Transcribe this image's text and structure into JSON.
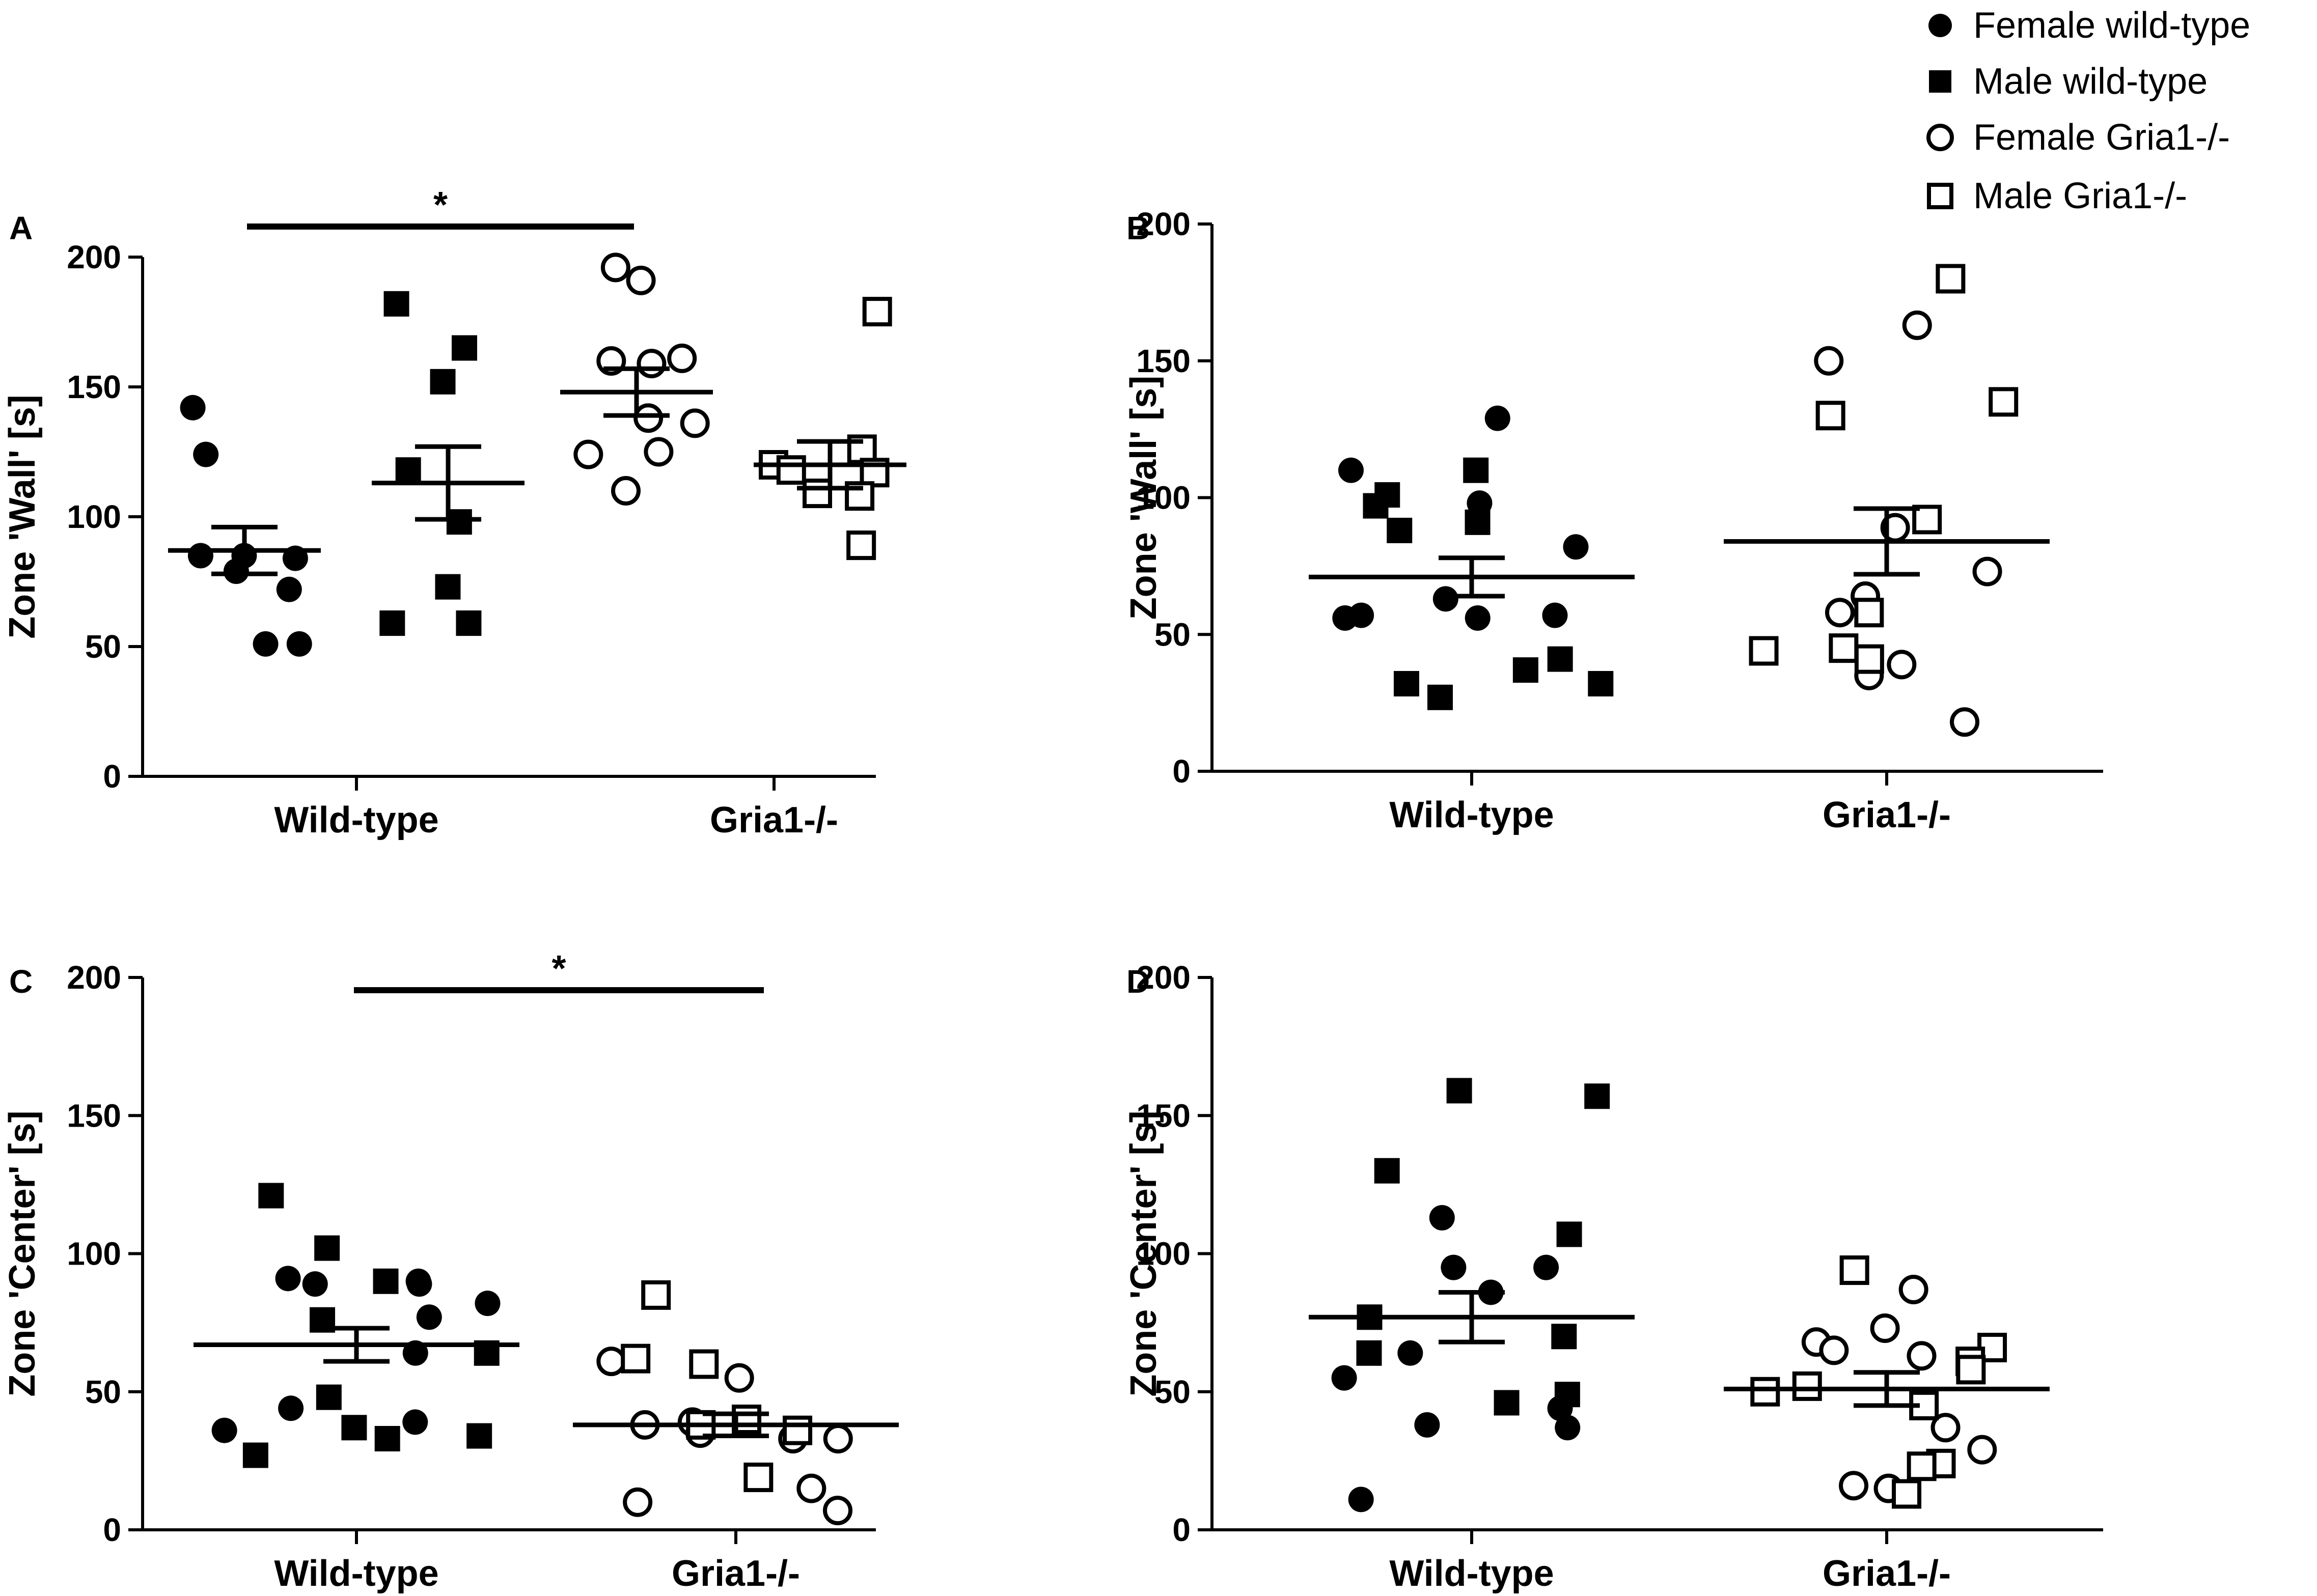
{
  "legend": {
    "placement": "top-right",
    "entries": [
      {
        "name": "female-wt",
        "label": "Female wild-type",
        "marker": "circle",
        "filled": true
      },
      {
        "name": "male-wt",
        "label": "Male wild-type",
        "marker": "square",
        "filled": true
      },
      {
        "name": "female-ko",
        "label": "Female Gria1-/-",
        "marker": "circle",
        "filled": false
      },
      {
        "name": "male-ko",
        "label": "Male Gria1-/-",
        "marker": "square",
        "filled": false
      }
    ]
  },
  "chart_data": [
    {
      "id": "A",
      "letter": "A",
      "type": "scatter",
      "ylabel": "Zone 'Wall' [s]",
      "ylim": [
        0,
        200
      ],
      "yticks": [
        0,
        50,
        100,
        150,
        200
      ],
      "categories": [
        "Wild-type",
        "Gria1-/-"
      ],
      "groups": [
        {
          "category": "Wild-type",
          "sex": "female",
          "marker": "circle",
          "filled": true,
          "values": [
            142,
            124,
            85,
            85,
            84,
            79,
            72,
            51,
            51
          ],
          "mean": 87,
          "sem": 9
        },
        {
          "category": "Wild-type",
          "sex": "male",
          "marker": "square",
          "filled": true,
          "values": [
            182,
            165,
            152,
            118,
            98,
            73,
            59,
            59
          ],
          "mean": 113,
          "sem": 14
        },
        {
          "category": "Gria1-/-",
          "sex": "female",
          "marker": "circle",
          "filled": false,
          "values": [
            196,
            191,
            161,
            160,
            159,
            138,
            136,
            125,
            124,
            110
          ],
          "mean": 148,
          "sem": 9
        },
        {
          "category": "Gria1-/-",
          "sex": "male",
          "marker": "square",
          "filled": false,
          "values": [
            179,
            126,
            120,
            118,
            117,
            109,
            108,
            89
          ],
          "mean": 120,
          "sem": 9
        }
      ],
      "significance": [
        {
          "label": "*",
          "from": "Wild-type female",
          "to": "Gria1-/- female"
        }
      ]
    },
    {
      "id": "B",
      "letter": "B",
      "type": "scatter",
      "ylabel": "Zone 'Wall' [s]",
      "ylim": [
        0,
        200
      ],
      "yticks": [
        0,
        50,
        100,
        150,
        200
      ],
      "categories": [
        "Wild-type",
        "Gria1-/-"
      ],
      "groups": [
        {
          "category": "Wild-type",
          "sex": "female",
          "marker": "circle",
          "filled": true,
          "values": [
            129,
            110,
            98,
            82,
            63,
            57,
            57,
            56,
            56
          ],
          "mean": 71,
          "sem": 7
        },
        {
          "category": "Wild-type",
          "sex": "male",
          "marker": "square",
          "filled": true,
          "values": [
            110,
            101,
            97,
            91,
            88,
            41,
            37,
            32,
            32,
            27
          ],
          "mean": 71,
          "sem": 7
        },
        {
          "category": "Gria1-/-",
          "sex": "female",
          "marker": "circle",
          "filled": false,
          "values": [
            163,
            150,
            89,
            73,
            64,
            58,
            39,
            35,
            18
          ],
          "mean": 84,
          "sem": 12
        },
        {
          "category": "Gria1-/-",
          "sex": "male",
          "marker": "square",
          "filled": false,
          "values": [
            180,
            135,
            130,
            92,
            58,
            45,
            44,
            41
          ],
          "mean": 84,
          "sem": 12
        }
      ],
      "significance": []
    },
    {
      "id": "C",
      "letter": "C",
      "type": "scatter",
      "ylabel": "Zone 'Center' [s]",
      "ylim": [
        0,
        200
      ],
      "yticks": [
        0,
        50,
        100,
        150,
        200
      ],
      "categories": [
        "Wild-type",
        "Gria1-/-"
      ],
      "groups": [
        {
          "category": "Wild-type",
          "sex": "female",
          "marker": "circle",
          "filled": true,
          "values": [
            91,
            90,
            89,
            89,
            82,
            77,
            64,
            44,
            39,
            36
          ],
          "mean": 67,
          "sem": 6
        },
        {
          "category": "Wild-type",
          "sex": "male",
          "marker": "square",
          "filled": true,
          "values": [
            121,
            102,
            90,
            76,
            64,
            48,
            37,
            34,
            33,
            27
          ],
          "mean": 67,
          "sem": 6
        },
        {
          "category": "Gria1-/-",
          "sex": "female",
          "marker": "circle",
          "filled": false,
          "values": [
            61,
            55,
            39,
            38,
            35,
            33,
            33,
            15,
            10,
            7
          ],
          "mean": 38,
          "sem": 4
        },
        {
          "category": "Gria1-/-",
          "sex": "male",
          "marker": "square",
          "filled": false,
          "values": [
            85,
            60,
            62,
            40,
            38,
            36,
            19
          ],
          "mean": 38,
          "sem": 4
        }
      ],
      "significance": [
        {
          "label": "*",
          "from": "Wild-type",
          "to": "Gria1-/-"
        }
      ]
    },
    {
      "id": "D",
      "letter": "D",
      "type": "scatter",
      "ylabel": "Zone 'Center' [s]",
      "ylim": [
        0,
        200
      ],
      "yticks": [
        0,
        50,
        100,
        150,
        200
      ],
      "categories": [
        "Wild-type",
        "Gria1-/-"
      ],
      "groups": [
        {
          "category": "Wild-type",
          "sex": "female",
          "marker": "circle",
          "filled": true,
          "values": [
            113,
            95,
            95,
            86,
            64,
            55,
            44,
            38,
            37,
            11
          ],
          "mean": 77,
          "sem": 9
        },
        {
          "category": "Wild-type",
          "sex": "male",
          "marker": "square",
          "filled": true,
          "values": [
            159,
            157,
            130,
            107,
            77,
            70,
            64,
            49,
            46
          ],
          "mean": 77,
          "sem": 9
        },
        {
          "category": "Gria1-/-",
          "sex": "female",
          "marker": "circle",
          "filled": false,
          "values": [
            87,
            73,
            68,
            65,
            63,
            37,
            29,
            16,
            15
          ],
          "mean": 51,
          "sem": 6
        },
        {
          "category": "Gria1-/-",
          "sex": "male",
          "marker": "square",
          "filled": false,
          "values": [
            94,
            66,
            61,
            58,
            52,
            50,
            45,
            24,
            23,
            13
          ],
          "mean": 51,
          "sem": 6
        }
      ],
      "significance": []
    }
  ]
}
